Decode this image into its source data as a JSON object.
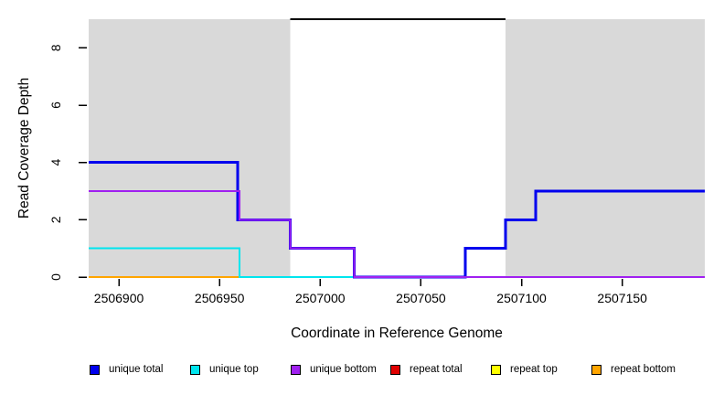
{
  "chart_data": {
    "type": "line",
    "subtype": "step-coverage",
    "title": "",
    "xlabel": "Coordinate in Reference Genome",
    "ylabel": "Read Coverage Depth",
    "xlim": [
      2506885,
      2507191
    ],
    "ylim": [
      0,
      9
    ],
    "x_ticks": [
      2506900,
      2506950,
      2507000,
      2507050,
      2507100,
      2507150
    ],
    "y_ticks": [
      0,
      2,
      4,
      6,
      8
    ],
    "grid": false,
    "legend_position": "bottom",
    "background_color": "#FFFFFF",
    "shaded_regions": [
      {
        "name": "repeat-region-left",
        "x_start": 2506885,
        "x_end": 2506985,
        "color": "#D9D9D9"
      },
      {
        "name": "repeat-region-right",
        "x_start": 2507092,
        "x_end": 2507191,
        "color": "#D9D9D9"
      }
    ],
    "top_marker": {
      "name": "unique-region-top-line",
      "x_start": 2506985,
      "x_end": 2507092,
      "y": 9,
      "color": "#000000",
      "width": 2
    },
    "series": [
      {
        "name": "repeat bottom",
        "color": "#FFA500",
        "width": 2,
        "breakpoints": [
          [
            2506885,
            0
          ]
        ],
        "end": 2506960
      },
      {
        "name": "repeat total",
        "color": "#E00000",
        "width": 2,
        "breakpoints": [],
        "end": null
      },
      {
        "name": "repeat top",
        "color": "#FFFF00",
        "width": 2,
        "breakpoints": [],
        "end": null
      },
      {
        "name": "unique top",
        "color": "#00E5EE",
        "width": 2,
        "breakpoints": [
          [
            2506885,
            1
          ],
          [
            2506960,
            0
          ],
          [
            2507072,
            1
          ],
          [
            2507092,
            2
          ],
          [
            2507107,
            3
          ]
        ],
        "end": 2507191
      },
      {
        "name": "unique total",
        "color": "#0000EE",
        "width": 3,
        "breakpoints": [
          [
            2506885,
            4
          ],
          [
            2506959,
            2
          ],
          [
            2506985,
            1
          ],
          [
            2507017,
            0
          ],
          [
            2507072,
            1
          ],
          [
            2507092,
            2
          ],
          [
            2507107,
            3
          ]
        ],
        "end": 2507191
      },
      {
        "name": "unique bottom",
        "color": "#A020F0",
        "width": 2,
        "breakpoints": [
          [
            2506885,
            3
          ],
          [
            2506960,
            2
          ],
          [
            2506985,
            1
          ],
          [
            2507017,
            0
          ]
        ],
        "end": 2507191
      }
    ],
    "legend": [
      {
        "label": "unique total",
        "color": "#0000EE"
      },
      {
        "label": "unique top",
        "color": "#00E5EE"
      },
      {
        "label": "unique bottom",
        "color": "#A020F0"
      },
      {
        "label": "repeat total",
        "color": "#E00000"
      },
      {
        "label": "repeat top",
        "color": "#FFFF00"
      },
      {
        "label": "repeat bottom",
        "color": "#FFA500"
      }
    ]
  }
}
